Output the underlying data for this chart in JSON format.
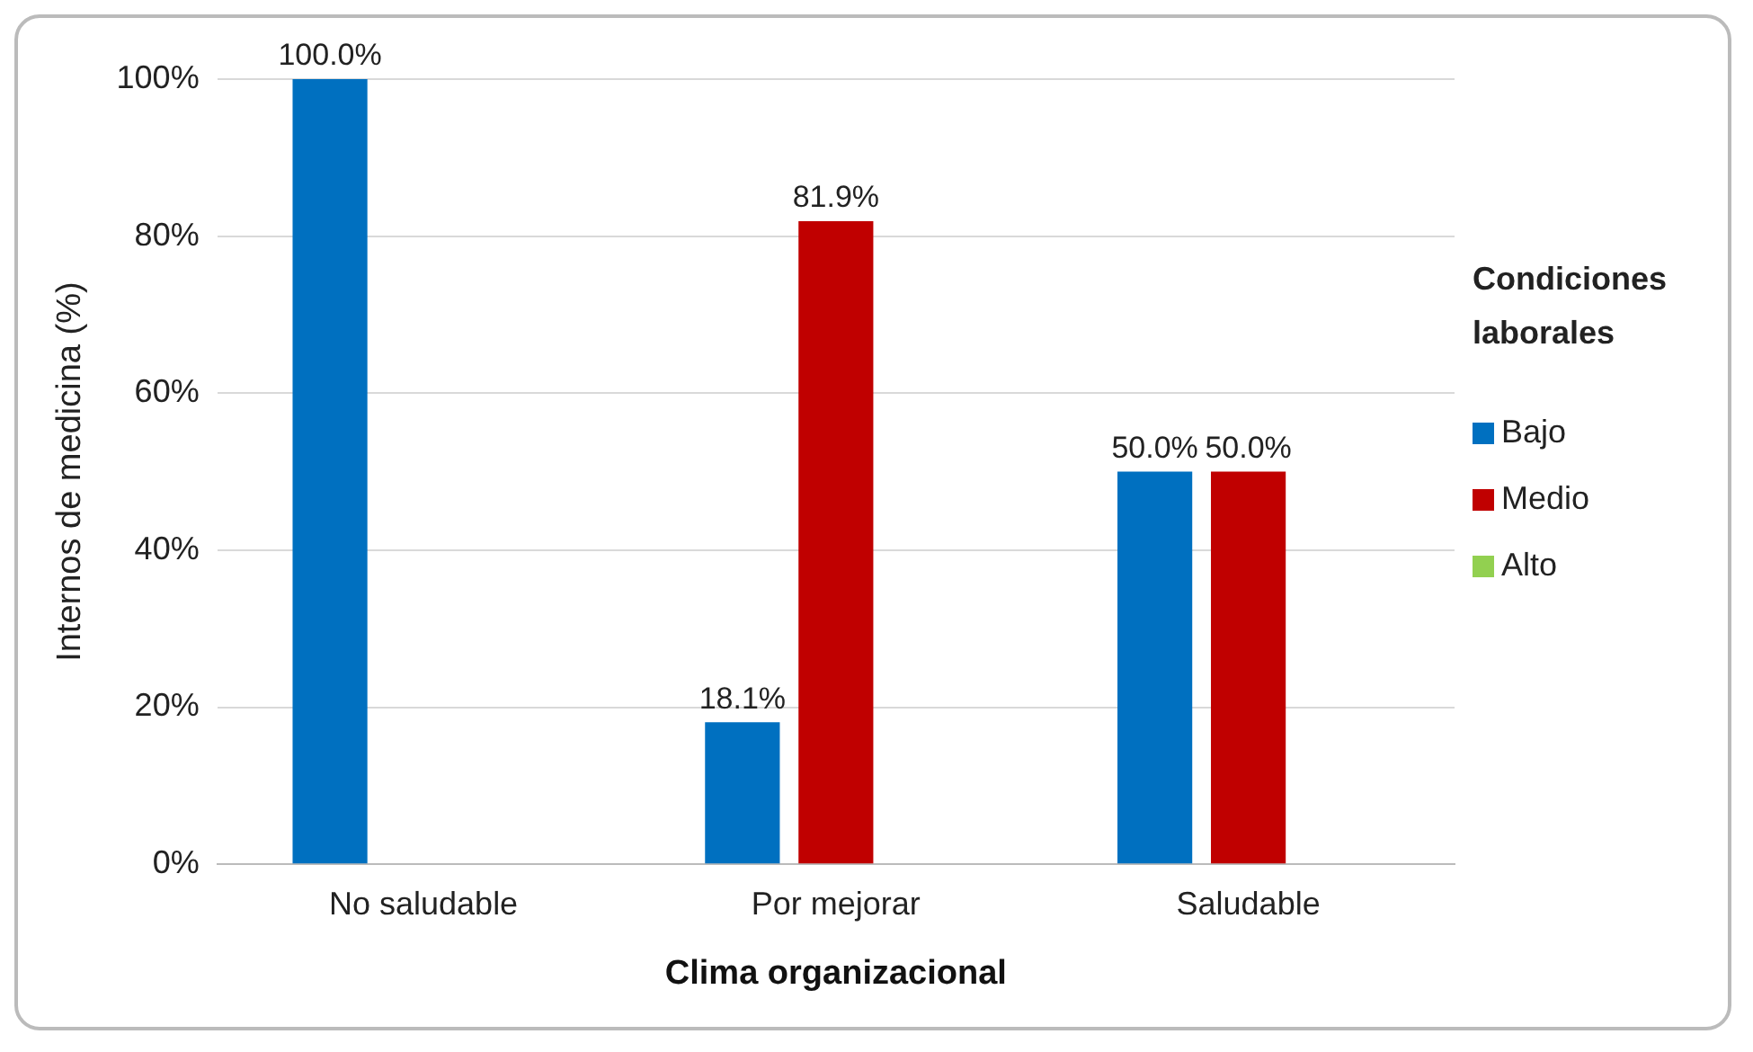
{
  "chart_data": {
    "type": "bar",
    "xlabel": "Clima organizacional",
    "ylabel": "Internos de medicina (%)",
    "legend_title": "Condiciones laborales",
    "categories": [
      "No saludable",
      "Por mejorar",
      "Saludable"
    ],
    "series": [
      {
        "name": "Bajo",
        "color": "#0070c0",
        "values": [
          100,
          18.1,
          50
        ],
        "value_labels": [
          "100.0%",
          "18.1%",
          "50.0%"
        ]
      },
      {
        "name": "Medio",
        "color": "#c00000",
        "values": [
          null,
          81.9,
          50
        ],
        "value_labels": [
          null,
          "81.9%",
          "50.0%"
        ]
      },
      {
        "name": "Alto",
        "color": "#92d050",
        "values": [
          null,
          null,
          null
        ]
      }
    ],
    "ylim": [
      0,
      100
    ],
    "yticks": [
      {
        "value": 0,
        "label": "0%"
      },
      {
        "value": 20,
        "label": "20%"
      },
      {
        "value": 40,
        "label": "40%"
      },
      {
        "value": 60,
        "label": "60%"
      },
      {
        "value": 80,
        "label": "80%"
      },
      {
        "value": 100,
        "label": "100%"
      }
    ],
    "grid": "y",
    "legend": "right"
  }
}
